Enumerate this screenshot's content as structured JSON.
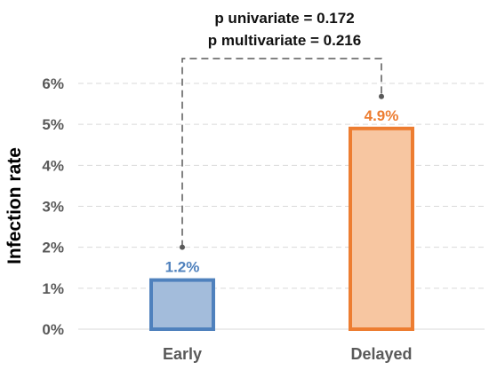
{
  "chart_data": {
    "type": "bar",
    "categories": [
      "Early",
      "Delayed"
    ],
    "values": [
      1.2,
      4.9
    ],
    "data_labels": [
      "1.2%",
      "4.9%"
    ],
    "ylabel": "Infection rate",
    "ylim": [
      0,
      6
    ],
    "yticks": [
      0,
      1,
      2,
      3,
      4,
      5,
      6
    ],
    "ytick_labels": [
      "0%",
      "1%",
      "2%",
      "3%",
      "4%",
      "5%",
      "6%"
    ],
    "grid": true,
    "colors": {
      "Early": {
        "fill": "#a3bcdb",
        "stroke": "#4f81bd",
        "label": "#4f81bd"
      },
      "Delayed": {
        "fill": "#f7c6a1",
        "stroke": "#ed7d31",
        "label": "#ed7d31"
      }
    },
    "annotations": {
      "p_univariate": "p univariate = 0.172",
      "p_multivariate": "p multivariate = 0.216"
    }
  }
}
